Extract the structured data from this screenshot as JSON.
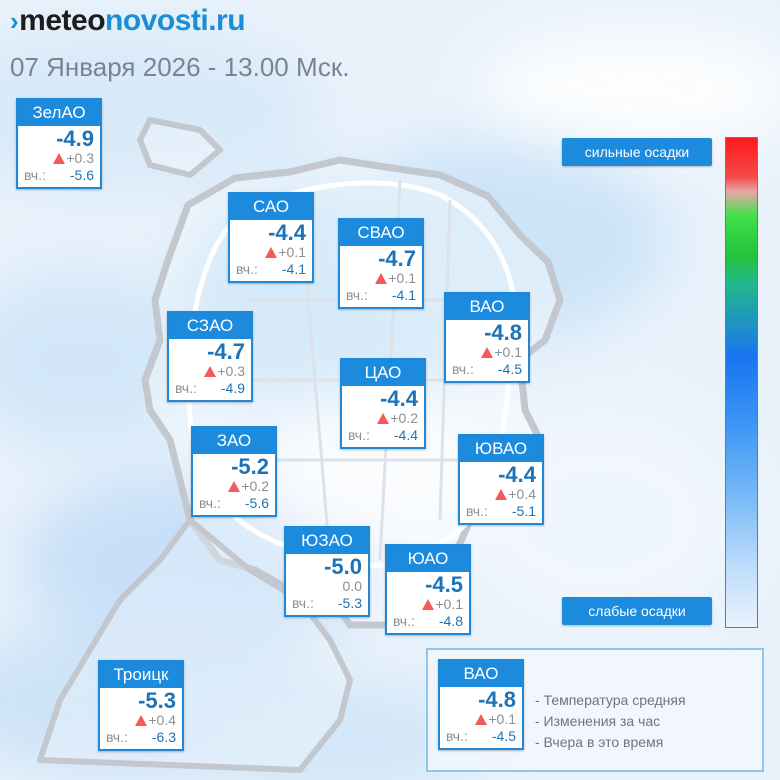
{
  "site": {
    "logo_dark": "meteo",
    "logo_blue": "novosti.ru",
    "logo_mark": "›"
  },
  "datetime": "07 Января 2026 - 13.00 Мск.",
  "yesterday_label": "вч.:",
  "districts": [
    {
      "name": "ЗелАО",
      "temp": "-4.9",
      "change": "+0.3",
      "change_icon": "up-triangle-icon",
      "yesterday": "-5.6"
    },
    {
      "name": "САО",
      "temp": "-4.4",
      "change": "+0.1",
      "change_icon": "up-triangle-icon",
      "yesterday": "-4.1"
    },
    {
      "name": "СВАО",
      "temp": "-4.7",
      "change": "+0.1",
      "change_icon": "up-triangle-icon",
      "yesterday": "-4.1"
    },
    {
      "name": "ВАО",
      "temp": "-4.8",
      "change": "+0.1",
      "change_icon": "up-triangle-icon",
      "yesterday": "-4.5"
    },
    {
      "name": "СЗАО",
      "temp": "-4.7",
      "change": "+0.3",
      "change_icon": "up-triangle-icon",
      "yesterday": "-4.9"
    },
    {
      "name": "ЦАО",
      "temp": "-4.4",
      "change": "+0.2",
      "change_icon": "up-triangle-icon",
      "yesterday": "-4.4"
    },
    {
      "name": "ЗАО",
      "temp": "-5.2",
      "change": "+0.2",
      "change_icon": "up-triangle-icon",
      "yesterday": "-5.6"
    },
    {
      "name": "ЮВАО",
      "temp": "-4.4",
      "change": "+0.4",
      "change_icon": "up-triangle-icon",
      "yesterday": "-5.1"
    },
    {
      "name": "ЮЗАО",
      "temp": "-5.0",
      "change": "0.0",
      "change_icon": "",
      "yesterday": "-5.3"
    },
    {
      "name": "ЮАО",
      "temp": "-4.5",
      "change": "+0.1",
      "change_icon": "up-triangle-icon",
      "yesterday": "-4.8"
    },
    {
      "name": "Троицк",
      "temp": "-5.3",
      "change": "+0.4",
      "change_icon": "up-triangle-icon",
      "yesterday": "-6.3"
    }
  ],
  "precip_scale": {
    "top_label": "сильные осадки",
    "bottom_label": "слабые осадки"
  },
  "legend": {
    "sample": {
      "name": "ВАО",
      "temp": "-4.8",
      "change": "+0.1",
      "change_icon": "up-triangle-icon",
      "yesterday": "-4.5"
    },
    "lines": [
      "- Температура средняя",
      "- Изменения за час",
      "- Вчера в это время"
    ]
  },
  "colors": {
    "accent": "#1c8bde",
    "temp_text": "#1c73b6",
    "up_arrow": "#f45a5a"
  }
}
